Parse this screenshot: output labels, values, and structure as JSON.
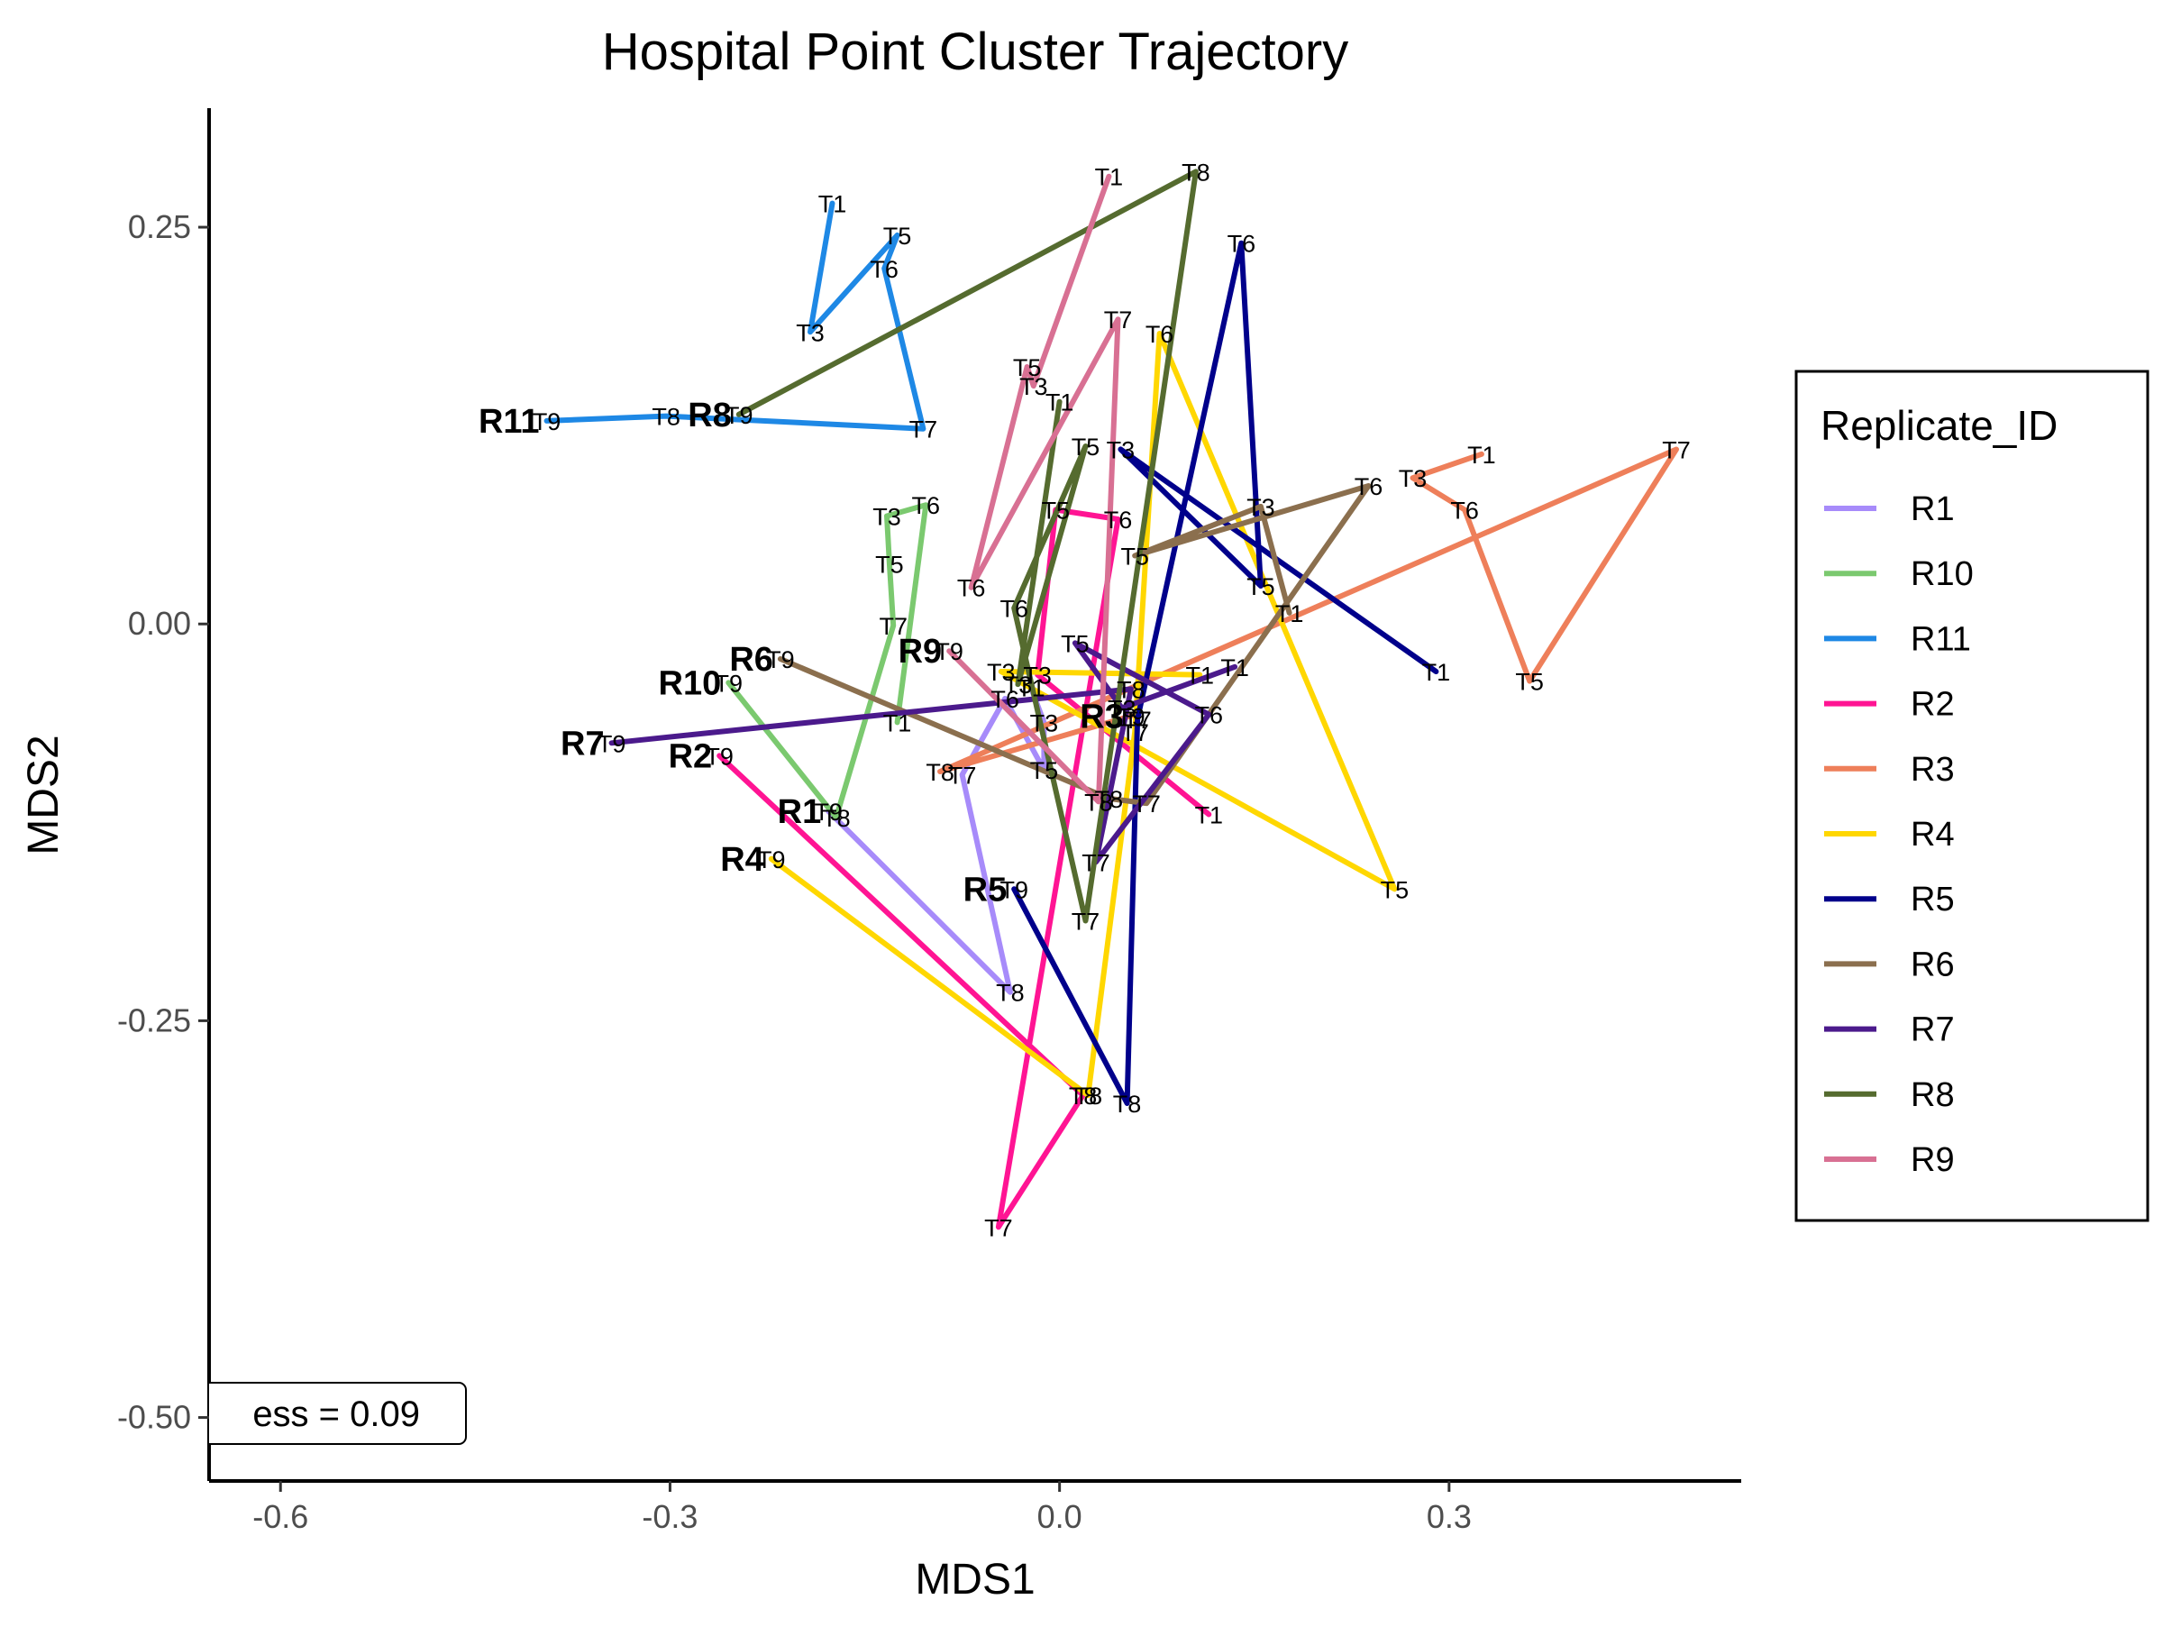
{
  "chart_data": {
    "type": "line",
    "title": "Hospital Point Cluster Trajectory",
    "xlabel": "MDS1",
    "ylabel": "MDS2",
    "xlim": [
      -0.655,
      0.525
    ],
    "ylim": [
      -0.54,
      0.325
    ],
    "xticks": [
      -0.6,
      -0.3,
      0.0,
      0.3
    ],
    "xtick_labels": [
      "-0.6",
      "-0.3",
      "0.0",
      "0.3"
    ],
    "yticks": [
      0.25,
      0.0,
      -0.25,
      -0.5
    ],
    "ytick_labels": [
      "0.25",
      "0.00",
      "-0.25",
      "-0.50"
    ],
    "grid": false,
    "legend": {
      "title": "Replicate_ID",
      "placement": "right"
    },
    "annotation": "ess = 0.09",
    "series": [
      {
        "name": "R1",
        "color": "#A78BFA",
        "points": [
          {
            "label": "T9",
            "x": -0.178,
            "y": -0.118
          },
          {
            "label": "T8",
            "x": -0.038,
            "y": -0.232
          },
          {
            "label": "T7",
            "x": -0.075,
            "y": -0.095
          },
          {
            "label": "T6",
            "x": -0.042,
            "y": -0.047
          },
          {
            "label": "T5",
            "x": -0.012,
            "y": -0.092
          },
          {
            "label": "T3",
            "x": -0.012,
            "y": -0.062
          },
          {
            "label": "T1",
            "x": -0.022,
            "y": -0.04
          }
        ]
      },
      {
        "name": "R10",
        "color": "#7BC96F",
        "points": [
          {
            "label": "T9",
            "x": -0.255,
            "y": -0.037
          },
          {
            "label": "T8",
            "x": -0.172,
            "y": -0.122
          },
          {
            "label": "T7",
            "x": -0.128,
            "y": -0.001
          },
          {
            "label": "T5",
            "x": -0.131,
            "y": 0.038
          },
          {
            "label": "T3",
            "x": -0.133,
            "y": 0.068
          },
          {
            "label": "T6",
            "x": -0.103,
            "y": 0.075
          },
          {
            "label": "T1",
            "x": -0.125,
            "y": -0.062
          }
        ]
      },
      {
        "name": "R11",
        "color": "#1E88E5",
        "points": [
          {
            "label": "T9",
            "x": -0.395,
            "y": 0.128
          },
          {
            "label": "T8",
            "x": -0.303,
            "y": 0.131
          },
          {
            "label": "T7",
            "x": -0.105,
            "y": 0.123
          },
          {
            "label": "T6",
            "x": -0.135,
            "y": 0.224
          },
          {
            "label": "T5",
            "x": -0.125,
            "y": 0.245
          },
          {
            "label": "T3",
            "x": -0.192,
            "y": 0.184
          },
          {
            "label": "T1",
            "x": -0.175,
            "y": 0.265
          }
        ]
      },
      {
        "name": "R2",
        "color": "#FF1493",
        "points": [
          {
            "label": "T9",
            "x": -0.262,
            "y": -0.083
          },
          {
            "label": "T8",
            "x": 0.018,
            "y": -0.297
          },
          {
            "label": "T7",
            "x": -0.047,
            "y": -0.38
          },
          {
            "label": "T6",
            "x": 0.045,
            "y": 0.066
          },
          {
            "label": "T5",
            "x": -0.003,
            "y": 0.072
          },
          {
            "label": "T3",
            "x": -0.017,
            "y": -0.032
          },
          {
            "label": "T1",
            "x": 0.115,
            "y": -0.12
          }
        ]
      },
      {
        "name": "R3",
        "color": "#EE7F5A",
        "points": [
          {
            "label": "T9",
            "x": 0.055,
            "y": -0.058
          },
          {
            "label": "T8",
            "x": -0.092,
            "y": -0.093
          },
          {
            "label": "T7",
            "x": 0.475,
            "y": 0.11
          },
          {
            "label": "T5",
            "x": 0.362,
            "y": -0.036
          },
          {
            "label": "T6",
            "x": 0.312,
            "y": 0.072
          },
          {
            "label": "T3",
            "x": 0.272,
            "y": 0.092
          },
          {
            "label": "T1",
            "x": 0.325,
            "y": 0.107
          }
        ]
      },
      {
        "name": "R4",
        "color": "#FFD700",
        "points": [
          {
            "label": "T9",
            "x": -0.222,
            "y": -0.148
          },
          {
            "label": "T8",
            "x": 0.022,
            "y": -0.297
          },
          {
            "label": "T7",
            "x": 0.058,
            "y": -0.068
          },
          {
            "label": "T6",
            "x": 0.077,
            "y": 0.183
          },
          {
            "label": "T5",
            "x": 0.258,
            "y": -0.167
          },
          {
            "label": "T3",
            "x": -0.045,
            "y": -0.03
          },
          {
            "label": "T1",
            "x": 0.108,
            "y": -0.032
          }
        ]
      },
      {
        "name": "R5",
        "color": "#00008B",
        "points": [
          {
            "label": "T9",
            "x": -0.035,
            "y": -0.167
          },
          {
            "label": "T8",
            "x": 0.052,
            "y": -0.302
          },
          {
            "label": "T7",
            "x": 0.06,
            "y": -0.06
          },
          {
            "label": "T6",
            "x": 0.14,
            "y": 0.24
          },
          {
            "label": "T5",
            "x": 0.155,
            "y": 0.024
          },
          {
            "label": "T3",
            "x": 0.047,
            "y": 0.11
          },
          {
            "label": "T1",
            "x": 0.29,
            "y": -0.03
          }
        ]
      },
      {
        "name": "R6",
        "color": "#8B6F4E",
        "points": [
          {
            "label": "T9",
            "x": -0.215,
            "y": -0.022
          },
          {
            "label": "T8",
            "x": 0.038,
            "y": -0.11
          },
          {
            "label": "T7",
            "x": 0.067,
            "y": -0.113
          },
          {
            "label": "T6",
            "x": 0.238,
            "y": 0.087
          },
          {
            "label": "T5",
            "x": 0.058,
            "y": 0.043
          },
          {
            "label": "T3",
            "x": 0.155,
            "y": 0.074
          },
          {
            "label": "T1",
            "x": 0.177,
            "y": 0.007
          }
        ]
      },
      {
        "name": "R7",
        "color": "#4B1A8C",
        "points": [
          {
            "label": "T9",
            "x": -0.345,
            "y": -0.075
          },
          {
            "label": "T8",
            "x": 0.055,
            "y": -0.041
          },
          {
            "label": "T7",
            "x": 0.028,
            "y": -0.15
          },
          {
            "label": "T6",
            "x": 0.115,
            "y": -0.057
          },
          {
            "label": "T5",
            "x": 0.012,
            "y": -0.012
          },
          {
            "label": "T3",
            "x": 0.048,
            "y": -0.053
          },
          {
            "label": "T1",
            "x": 0.135,
            "y": -0.027
          }
        ]
      },
      {
        "name": "R8",
        "color": "#556B2F",
        "points": [
          {
            "label": "T9",
            "x": -0.247,
            "y": 0.132
          },
          {
            "label": "T8",
            "x": 0.105,
            "y": 0.285
          },
          {
            "label": "T7",
            "x": 0.02,
            "y": -0.187
          },
          {
            "label": "T6",
            "x": -0.035,
            "y": 0.01
          },
          {
            "label": "T5",
            "x": 0.02,
            "y": 0.112
          },
          {
            "label": "T3",
            "x": -0.032,
            "y": -0.038
          },
          {
            "label": "T1",
            "x": 0.0,
            "y": 0.14
          }
        ]
      },
      {
        "name": "R9",
        "color": "#D87093",
        "points": [
          {
            "label": "T9",
            "x": -0.085,
            "y": -0.017
          },
          {
            "label": "T8",
            "x": 0.03,
            "y": -0.112
          },
          {
            "label": "T7",
            "x": 0.045,
            "y": 0.192
          },
          {
            "label": "T6",
            "x": -0.068,
            "y": 0.023
          },
          {
            "label": "T5",
            "x": -0.025,
            "y": 0.162
          },
          {
            "label": "T3",
            "x": -0.02,
            "y": 0.15
          },
          {
            "label": "T1",
            "x": 0.038,
            "y": 0.282
          }
        ]
      }
    ]
  }
}
